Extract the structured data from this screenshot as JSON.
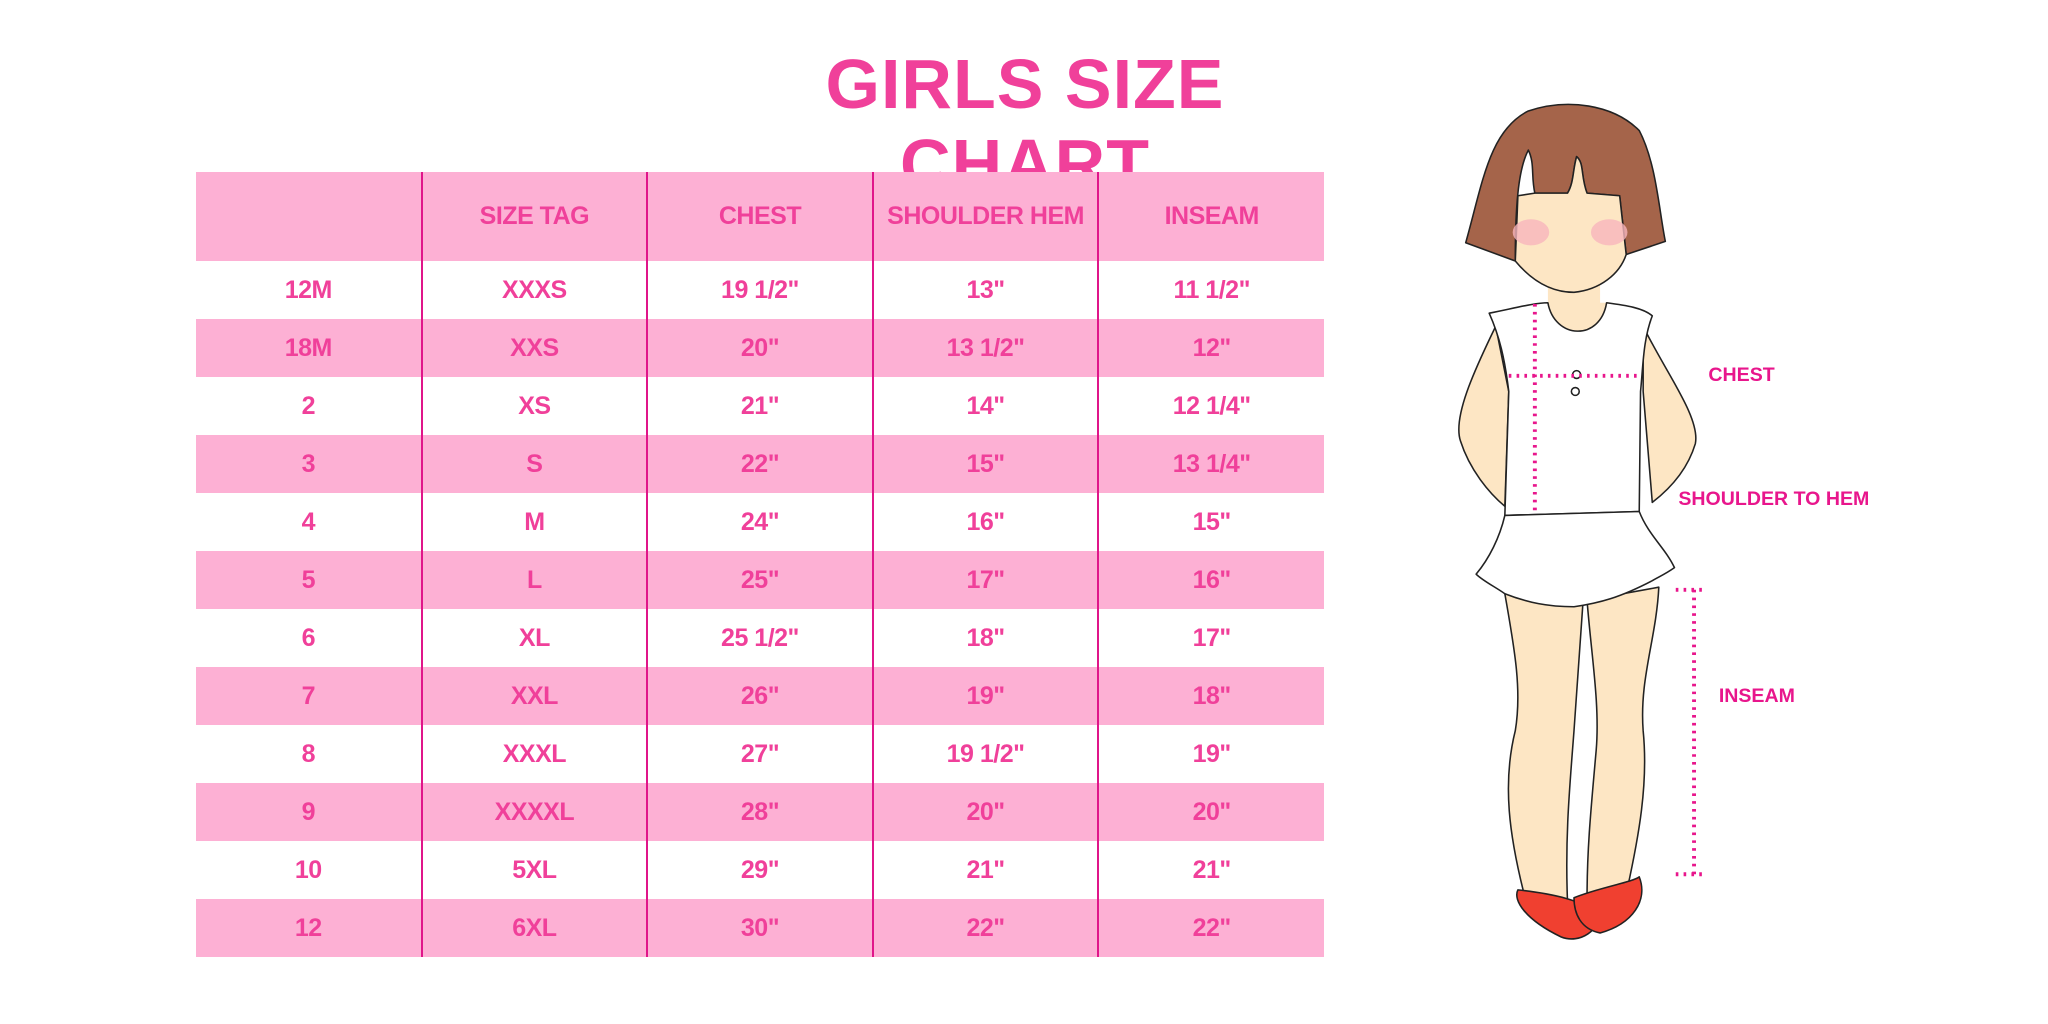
{
  "title": "GIRLS SIZE CHART",
  "table": {
    "headers": [
      "",
      "SIZE TAG",
      "CHEST",
      "SHOULDER HEM",
      "INSEAM"
    ],
    "rows": [
      [
        "12M",
        "XXXS",
        "19 1/2\"",
        "13\"",
        "11 1/2\""
      ],
      [
        "18M",
        "XXS",
        "20\"",
        "13 1/2\"",
        "12\""
      ],
      [
        "2",
        "XS",
        "21\"",
        "14\"",
        "12 1/4\""
      ],
      [
        "3",
        "S",
        "22\"",
        "15\"",
        "13 1/4\""
      ],
      [
        "4",
        "M",
        "24\"",
        "16\"",
        "15\""
      ],
      [
        "5",
        "L",
        "25\"",
        "17\"",
        "16\""
      ],
      [
        "6",
        "XL",
        "25 1/2\"",
        "18\"",
        "17\""
      ],
      [
        "7",
        "XXL",
        "26\"",
        "19\"",
        "18\""
      ],
      [
        "8",
        "XXXL",
        "27\"",
        "19 1/2\"",
        "19\""
      ],
      [
        "9",
        "XXXXL",
        "28\"",
        "20\"",
        "20\""
      ],
      [
        "10",
        "5XL",
        "29\"",
        "21\"",
        "21\""
      ],
      [
        "12",
        "6XL",
        "30\"",
        "22\"",
        "22\""
      ]
    ]
  },
  "figure": {
    "labels": {
      "chest": "CHEST",
      "shoulder_to_hem": "SHOULDER TO HEM",
      "inseam": "INSEAM"
    }
  },
  "colors": {
    "accent": "#f0409a",
    "row_fill": "#fdb0d4",
    "divider": "#e0158a",
    "measure": "#e8168c"
  }
}
